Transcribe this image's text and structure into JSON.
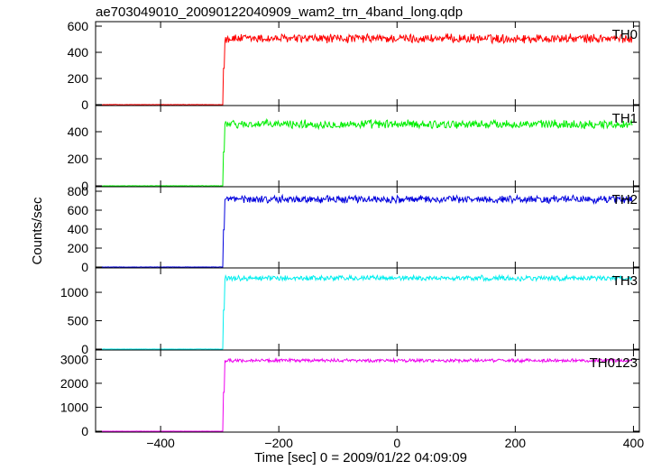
{
  "chart_data": {
    "type": "line",
    "title": "ae703049010_20090122040909_wam2_trn_4band_long.qdp",
    "xlabel": "Time [sec] 0 = 2009/01/22 04:09:09",
    "ylabel": "Counts/sec",
    "xlim": [
      -510,
      410
    ],
    "xticks": [
      -400,
      -200,
      0,
      200,
      400
    ],
    "xtick_labels": [
      "−400",
      "−200",
      "0",
      "200",
      "400"
    ],
    "onset_x": -294,
    "x_start": -500,
    "panels": [
      {
        "name": "TH0",
        "color": "#ff0000",
        "ylim": [
          0,
          600
        ],
        "yticks": [
          0,
          200,
          400,
          600
        ],
        "ytick_labels": [
          "0",
          "200",
          "400",
          "600"
        ],
        "pre_level": 0,
        "post_level": 505,
        "noise": 30
      },
      {
        "name": "TH1",
        "color": "#00ee00",
        "ylim": [
          0,
          560
        ],
        "yticks": [
          0,
          200,
          400
        ],
        "ytick_labels": [
          "0",
          "200",
          "400"
        ],
        "pre_level": 0,
        "post_level": 455,
        "noise": 28
      },
      {
        "name": "TH2",
        "color": "#0000dd",
        "ylim": [
          0,
          800
        ],
        "yticks": [
          0,
          200,
          400,
          600,
          800
        ],
        "ytick_labels": [
          "0",
          "200",
          "400",
          "600",
          "800"
        ],
        "pre_level": 0,
        "post_level": 715,
        "noise": 35
      },
      {
        "name": "TH3",
        "color": "#00eeee",
        "ylim": [
          0,
          1350
        ],
        "yticks": [
          0,
          500,
          1000
        ],
        "ytick_labels": [
          "0",
          "500",
          "1000"
        ],
        "pre_level": 0,
        "post_level": 1250,
        "noise": 40
      },
      {
        "name": "TH0123",
        "color": "#ee00ee",
        "ylim": [
          0,
          3200
        ],
        "yticks": [
          0,
          1000,
          2000,
          3000
        ],
        "ytick_labels": [
          "0",
          "1000",
          "2000",
          "3000"
        ],
        "pre_level": 0,
        "post_level": 2950,
        "noise": 60
      }
    ]
  }
}
